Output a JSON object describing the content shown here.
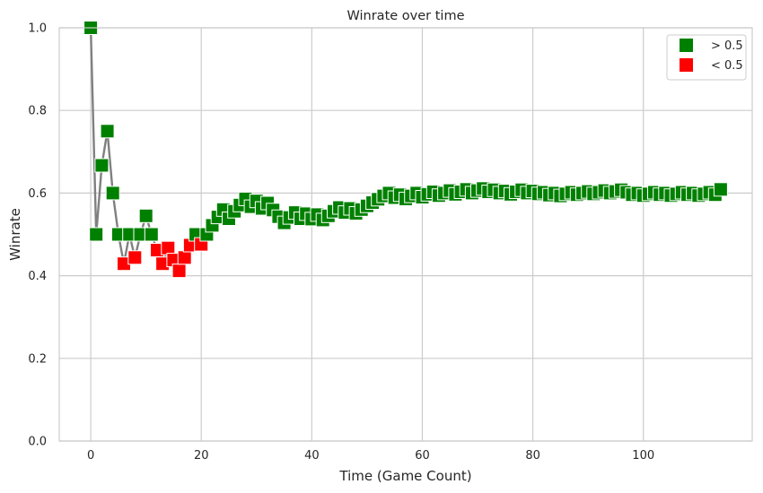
{
  "chart_data": {
    "type": "scatter",
    "title": "Winrate over time",
    "xlabel": "Time (Game Count)",
    "ylabel": "Winrate",
    "xlim": [
      -5.7,
      119.7
    ],
    "ylim": [
      0,
      1
    ],
    "xticks": [
      0,
      20,
      40,
      60,
      80,
      100
    ],
    "yticks": [
      0.0,
      0.2,
      0.4,
      0.6,
      0.8,
      1.0
    ],
    "xtick_labels": [
      "0",
      "20",
      "40",
      "60",
      "80",
      "100"
    ],
    "ytick_labels": [
      "0.0",
      "0.2",
      "0.4",
      "0.6",
      "0.8",
      "1.0"
    ],
    "grid": true,
    "legend_position": "top-right",
    "threshold": 0.5,
    "colors": {
      "above": "#008000",
      "below": "#ff0000",
      "line": "#808080",
      "grid": "#cccccc",
      "edge": "#ffffff"
    },
    "legend": [
      {
        "label": "> 0.5",
        "color": "#008000"
      },
      {
        "label": "< 0.5",
        "color": "#ff0000"
      }
    ],
    "series": [
      {
        "x": [
          0,
          1,
          2,
          3,
          4,
          5,
          6,
          7,
          8,
          9,
          10,
          11,
          12,
          13,
          14,
          15,
          16,
          17,
          18,
          19,
          20,
          21,
          22,
          23,
          24,
          25,
          26,
          27,
          28,
          29,
          30,
          31,
          32,
          33,
          34,
          35,
          36,
          37,
          38,
          39,
          40,
          41,
          42,
          43,
          44,
          45,
          46,
          47,
          48,
          49,
          50,
          51,
          52,
          53,
          54,
          55,
          56,
          57,
          58,
          59,
          60,
          61,
          62,
          63,
          64,
          65,
          66,
          67,
          68,
          69,
          70,
          71,
          72,
          73,
          74,
          75,
          76,
          77,
          78,
          79,
          80,
          81,
          82,
          83,
          84,
          85,
          86,
          87,
          88,
          89,
          90,
          91,
          92,
          93,
          94,
          95,
          96,
          97,
          98,
          99,
          100,
          101,
          102,
          103,
          104,
          105,
          106,
          107,
          108,
          109,
          110,
          111,
          112,
          113,
          114
        ],
        "y": [
          1.0,
          0.5,
          0.667,
          0.75,
          0.6,
          0.5,
          0.429,
          0.5,
          0.444,
          0.5,
          0.545,
          0.5,
          0.462,
          0.429,
          0.467,
          0.438,
          0.412,
          0.444,
          0.474,
          0.5,
          0.476,
          0.5,
          0.522,
          0.542,
          0.56,
          0.538,
          0.556,
          0.571,
          0.586,
          0.567,
          0.581,
          0.563,
          0.576,
          0.559,
          0.543,
          0.528,
          0.541,
          0.553,
          0.538,
          0.55,
          0.537,
          0.548,
          0.535,
          0.545,
          0.556,
          0.565,
          0.553,
          0.563,
          0.551,
          0.56,
          0.569,
          0.577,
          0.585,
          0.593,
          0.6,
          0.589,
          0.596,
          0.586,
          0.593,
          0.6,
          0.59,
          0.597,
          0.603,
          0.594,
          0.6,
          0.606,
          0.597,
          0.603,
          0.609,
          0.6,
          0.606,
          0.611,
          0.603,
          0.608,
          0.6,
          0.605,
          0.597,
          0.603,
          0.608,
          0.6,
          0.605,
          0.598,
          0.602,
          0.595,
          0.6,
          0.593,
          0.598,
          0.602,
          0.596,
          0.6,
          0.604,
          0.598,
          0.602,
          0.606,
          0.6,
          0.604,
          0.608,
          0.602,
          0.596,
          0.6,
          0.594,
          0.598,
          0.602,
          0.596,
          0.6,
          0.594,
          0.598,
          0.602,
          0.596,
          0.6,
          0.594,
          0.598,
          0.602,
          0.596,
          0.609
        ]
      }
    ]
  }
}
